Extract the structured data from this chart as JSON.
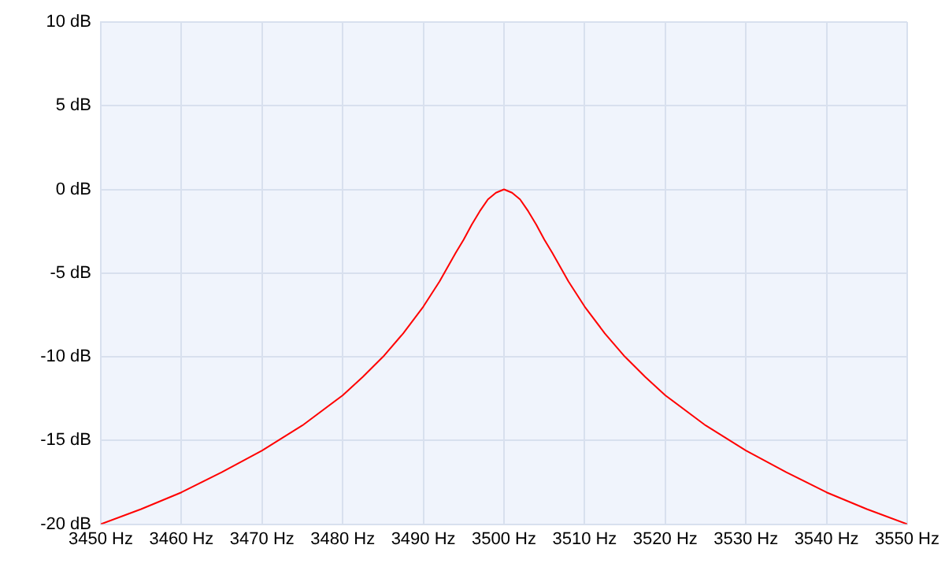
{
  "chart_data": {
    "type": "line",
    "x": [
      3450,
      3455,
      3460,
      3465,
      3470,
      3475,
      3480,
      3482.5,
      3485,
      3487.5,
      3490,
      3492,
      3494,
      3495,
      3496,
      3497,
      3498,
      3499,
      3500,
      3501,
      3502,
      3503,
      3504,
      3505,
      3506,
      3508,
      3510,
      3512.5,
      3515,
      3517.5,
      3520,
      3525,
      3530,
      3535,
      3540,
      3545,
      3550
    ],
    "series": [
      {
        "color": "#ff0000",
        "values": [
          -20.0,
          -19.1,
          -18.1,
          -16.9,
          -15.6,
          -14.1,
          -12.3,
          -11.2,
          -10.0,
          -8.6,
          -7.0,
          -5.5,
          -3.8,
          -3.0,
          -2.1,
          -1.3,
          -0.6,
          -0.2,
          0,
          -0.2,
          -0.6,
          -1.3,
          -2.1,
          -3.0,
          -3.8,
          -5.5,
          -7.0,
          -8.6,
          -10.0,
          -11.2,
          -12.3,
          -14.1,
          -15.6,
          -16.9,
          -18.1,
          -19.1,
          -20.0
        ]
      }
    ],
    "xlim": [
      3450,
      3550
    ],
    "xticks": [
      {
        "value": 3450,
        "label": "3450 Hz"
      },
      {
        "value": 3460,
        "label": "3460 Hz"
      },
      {
        "value": 3470,
        "label": "3470 Hz"
      },
      {
        "value": 3480,
        "label": "3480 Hz"
      },
      {
        "value": 3490,
        "label": "3490 Hz"
      },
      {
        "value": 3500,
        "label": "3500 Hz"
      },
      {
        "value": 3510,
        "label": "3510 Hz"
      },
      {
        "value": 3520,
        "label": "3520 Hz"
      },
      {
        "value": 3530,
        "label": "3530 Hz"
      },
      {
        "value": 3540,
        "label": "3540 Hz"
      },
      {
        "value": 3550,
        "label": "3550 Hz"
      }
    ],
    "ylim": [
      -20,
      10
    ],
    "yticks": [
      {
        "value": -20,
        "label": "-20 dB"
      },
      {
        "value": -15,
        "label": "-15 dB"
      },
      {
        "value": -10,
        "label": "-10 dB"
      },
      {
        "value": -5,
        "label": "-5 dB"
      },
      {
        "value": 0,
        "label": "0 dB"
      },
      {
        "value": 5,
        "label": "5 dB"
      },
      {
        "value": 10,
        "label": "10 dB"
      }
    ],
    "grid": true,
    "legend": false,
    "marker": "none",
    "line_style": "solid"
  }
}
